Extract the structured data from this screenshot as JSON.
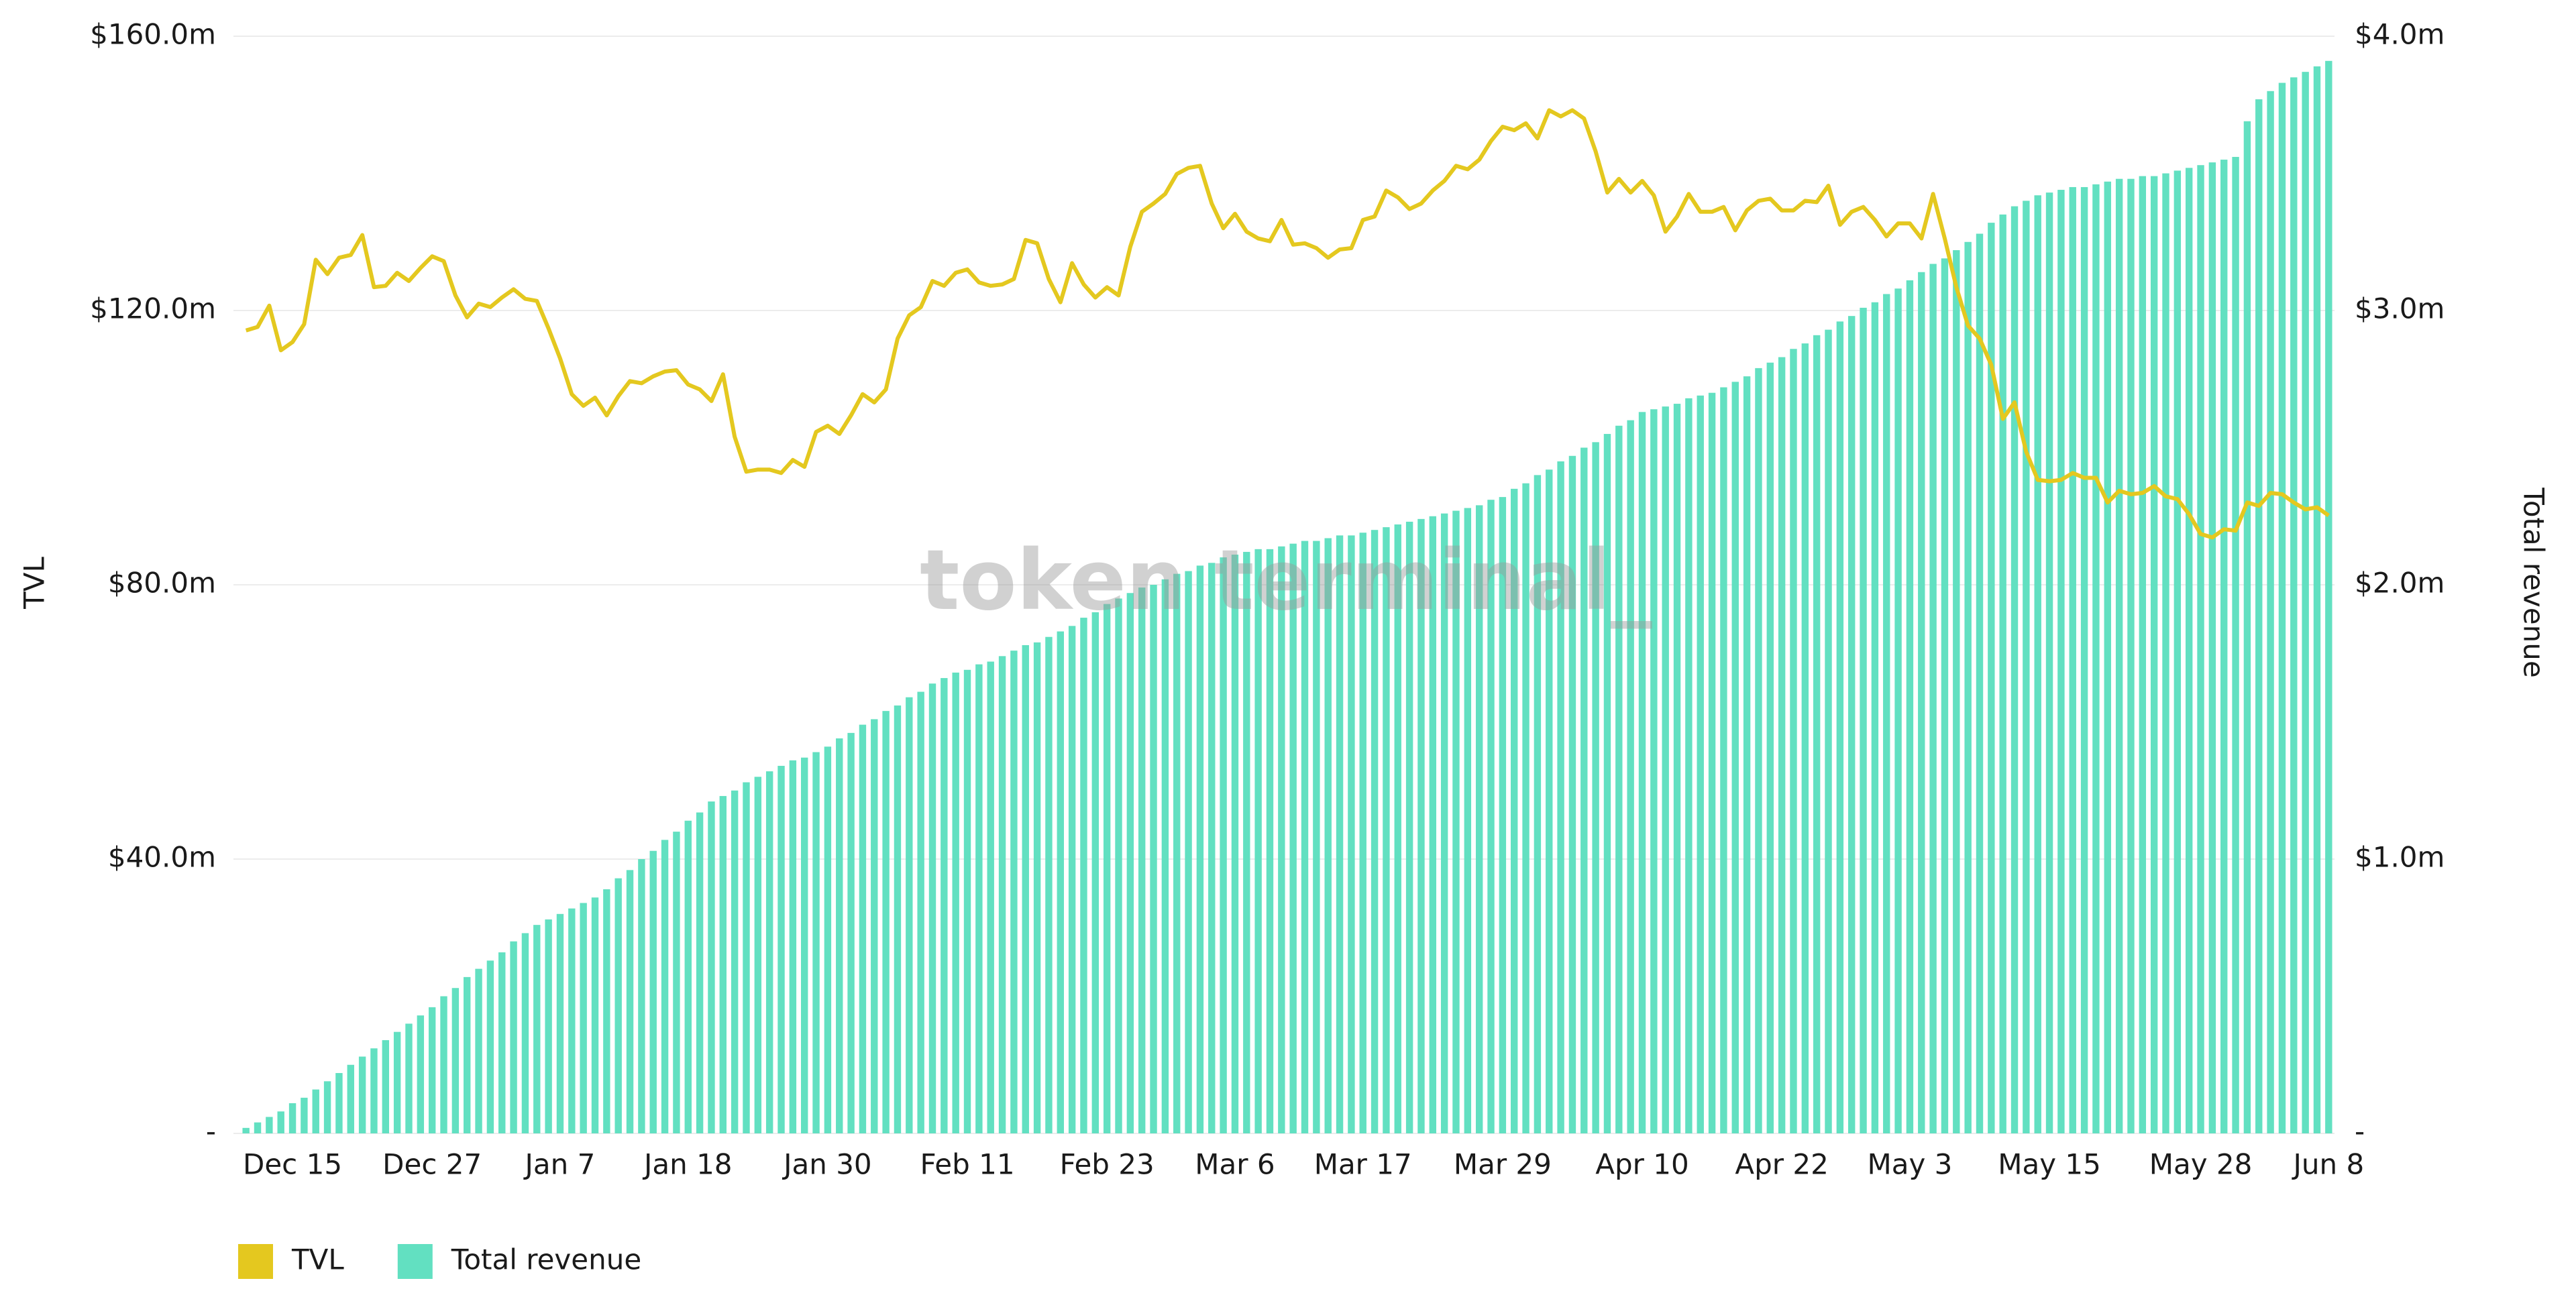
{
  "chart_data": {
    "type": "combo",
    "watermark": "token terminal_",
    "y_label": "TVL",
    "y2_label": "Total revenue",
    "categories": [
      null,
      null,
      null,
      null,
      "Dec 15",
      null,
      null,
      null,
      null,
      null,
      null,
      null,
      null,
      null,
      null,
      null,
      "Dec 27",
      null,
      null,
      null,
      null,
      null,
      null,
      null,
      null,
      null,
      null,
      "Jan 7",
      null,
      null,
      null,
      null,
      null,
      null,
      null,
      null,
      null,
      null,
      "Jan 18",
      null,
      null,
      null,
      null,
      null,
      null,
      null,
      null,
      null,
      null,
      null,
      "Jan 30",
      null,
      null,
      null,
      null,
      null,
      null,
      null,
      null,
      null,
      null,
      null,
      "Feb 11",
      null,
      null,
      null,
      null,
      null,
      null,
      null,
      null,
      null,
      null,
      null,
      "Feb 23",
      null,
      null,
      null,
      null,
      null,
      null,
      null,
      null,
      null,
      null,
      "Mar 6",
      null,
      null,
      null,
      null,
      null,
      null,
      null,
      null,
      null,
      null,
      "Mar 17",
      null,
      null,
      null,
      null,
      null,
      null,
      null,
      null,
      null,
      null,
      null,
      "Mar 29",
      null,
      null,
      null,
      null,
      null,
      null,
      null,
      null,
      null,
      null,
      null,
      "Apr 10",
      null,
      null,
      null,
      null,
      null,
      null,
      null,
      null,
      null,
      null,
      null,
      "Apr 22",
      null,
      null,
      null,
      null,
      null,
      null,
      null,
      null,
      null,
      null,
      "May 3",
      null,
      null,
      null,
      null,
      null,
      null,
      null,
      null,
      null,
      null,
      null,
      "May 15",
      null,
      null,
      null,
      null,
      null,
      null,
      null,
      null,
      null,
      null,
      null,
      null,
      "May 28",
      null,
      null,
      null,
      null,
      null,
      null,
      null,
      null,
      null,
      null,
      "Jun 8"
    ],
    "series": [
      {
        "name": "TVL",
        "type": "line",
        "axis": "y",
        "color": "#e4c81f",
        "values": [
          117.1,
          117.6,
          120.7,
          114.2,
          115.4,
          118,
          127.4,
          125.3,
          127.7,
          128.1,
          131,
          123.4,
          123.6,
          125.5,
          124.3,
          126.2,
          127.9,
          127.2,
          122.2,
          119,
          121,
          120.5,
          121.9,
          123.1,
          121.7,
          121.4,
          117.4,
          113,
          107.8,
          106.1,
          107.3,
          104.7,
          107.5,
          109.7,
          109.4,
          110.4,
          111.1,
          111.3,
          109.2,
          108.5,
          106.8,
          110.7,
          101.6,
          96.5,
          96.8,
          96.8,
          96.3,
          98.2,
          97.2,
          102.3,
          103.2,
          102,
          104.7,
          107.8,
          106.6,
          108.5,
          115.9,
          119.3,
          120.5,
          124.3,
          123.6,
          125.5,
          126,
          124.1,
          123.6,
          123.8,
          124.6,
          130.3,
          129.8,
          124.6,
          121.2,
          126.9,
          123.8,
          121.9,
          123.4,
          122.2,
          129.3,
          134.4,
          135.6,
          137,
          139.9,
          140.8,
          141.1,
          135.6,
          132,
          134.1,
          131.5,
          130.5,
          130.1,
          133.2,
          129.6,
          129.8,
          129.1,
          127.7,
          128.9,
          129.1,
          133.2,
          133.7,
          137.5,
          136.5,
          134.8,
          135.6,
          137.5,
          138.9,
          141.1,
          140.6,
          142,
          144.7,
          146.8,
          146.3,
          147.3,
          145.1,
          149.2,
          148.3,
          149.2,
          148,
          143.2,
          137.2,
          139.2,
          137.2,
          138.9,
          136.8,
          131.5,
          133.7,
          137,
          134.4,
          134.4,
          135.1,
          131.7,
          134.6,
          136,
          136.3,
          134.6,
          134.6,
          136,
          135.8,
          138.2,
          132.5,
          134.4,
          135.1,
          133.2,
          130.8,
          132.7,
          132.7,
          130.5,
          137,
          130.5,
          123.4,
          117.8,
          115.9,
          112.1,
          104.2,
          106.6,
          99.4,
          95.3,
          95.1,
          95.3,
          96.3,
          95.6,
          95.6,
          92,
          93.7,
          93.2,
          93.4,
          94.4,
          92.9,
          92.5,
          90.3,
          87.4,
          86.9,
          88.1,
          87.9,
          92,
          91.5,
          93.4,
          93.2,
          92,
          91,
          91.3,
          90.1
        ]
      },
      {
        "name": "Total revenue",
        "type": "bar",
        "axis": "y2",
        "color": "#62e0c1",
        "values": [
          0.02,
          0.04,
          0.06,
          0.08,
          0.11,
          0.13,
          0.16,
          0.19,
          0.22,
          0.25,
          0.28,
          0.31,
          0.34,
          0.37,
          0.4,
          0.43,
          0.46,
          0.5,
          0.53,
          0.57,
          0.6,
          0.63,
          0.66,
          0.7,
          0.73,
          0.76,
          0.78,
          0.8,
          0.82,
          0.84,
          0.86,
          0.89,
          0.93,
          0.96,
          1.0,
          1.03,
          1.07,
          1.1,
          1.14,
          1.17,
          1.21,
          1.23,
          1.25,
          1.28,
          1.3,
          1.32,
          1.34,
          1.36,
          1.37,
          1.39,
          1.41,
          1.44,
          1.46,
          1.49,
          1.51,
          1.54,
          1.56,
          1.59,
          1.61,
          1.64,
          1.66,
          1.68,
          1.69,
          1.71,
          1.72,
          1.74,
          1.76,
          1.78,
          1.79,
          1.81,
          1.83,
          1.85,
          1.88,
          1.9,
          1.93,
          1.95,
          1.97,
          1.99,
          2.0,
          2.02,
          2.04,
          2.05,
          2.07,
          2.08,
          2.1,
          2.11,
          2.12,
          2.13,
          2.13,
          2.14,
          2.15,
          2.16,
          2.16,
          2.17,
          2.18,
          2.18,
          2.19,
          2.2,
          2.21,
          2.22,
          2.23,
          2.24,
          2.25,
          2.26,
          2.27,
          2.28,
          2.29,
          2.31,
          2.32,
          2.35,
          2.37,
          2.4,
          2.42,
          2.45,
          2.47,
          2.5,
          2.52,
          2.55,
          2.58,
          2.6,
          2.63,
          2.64,
          2.65,
          2.66,
          2.68,
          2.69,
          2.7,
          2.72,
          2.74,
          2.76,
          2.79,
          2.81,
          2.83,
          2.86,
          2.88,
          2.91,
          2.93,
          2.96,
          2.98,
          3.01,
          3.03,
          3.06,
          3.08,
          3.11,
          3.14,
          3.17,
          3.19,
          3.22,
          3.25,
          3.28,
          3.32,
          3.35,
          3.38,
          3.4,
          3.42,
          3.43,
          3.44,
          3.45,
          3.45,
          3.46,
          3.47,
          3.48,
          3.48,
          3.49,
          3.49,
          3.5,
          3.51,
          3.52,
          3.53,
          3.54,
          3.55,
          3.56,
          3.69,
          3.77,
          3.8,
          3.83,
          3.85,
          3.87,
          3.89,
          3.91
        ]
      }
    ],
    "ylim": [
      0,
      160
    ],
    "yticks": [
      {
        "value": 0,
        "label": "-"
      },
      {
        "value": 40,
        "label": "$40.0m"
      },
      {
        "value": 80,
        "label": "$80.0m"
      },
      {
        "value": 120,
        "label": "$120.0m"
      },
      {
        "value": 160,
        "label": "$160.0m"
      }
    ],
    "y2lim": [
      0,
      4
    ],
    "y2ticks": [
      {
        "value": 0,
        "label": "-"
      },
      {
        "value": 1,
        "label": "$1.0m"
      },
      {
        "value": 2,
        "label": "$2.0m"
      },
      {
        "value": 3,
        "label": "$3.0m"
      },
      {
        "value": 4,
        "label": "$4.0m"
      }
    ],
    "grid": true,
    "legend": "bottom-left"
  }
}
